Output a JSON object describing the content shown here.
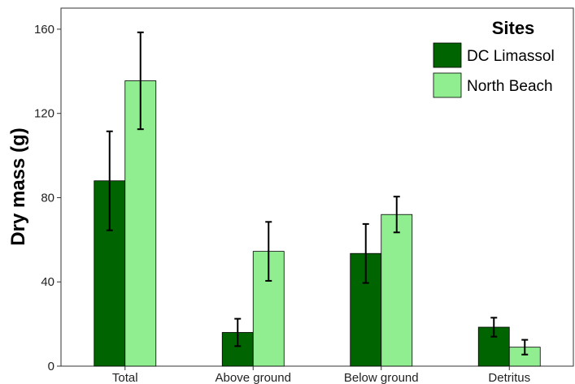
{
  "chart_data": {
    "type": "bar",
    "categories": [
      "Total",
      "Above ground",
      "Below ground",
      "Detritus"
    ],
    "series": [
      {
        "name": "DC Limassol",
        "color": "#006400",
        "values": [
          88,
          16,
          53.5,
          18.5
        ],
        "errors": [
          23.5,
          6.5,
          14,
          4.5
        ]
      },
      {
        "name": "North Beach",
        "color": "#90ee90",
        "values": [
          135.5,
          54.5,
          72,
          9
        ],
        "errors": [
          23,
          14,
          8.5,
          3.5
        ]
      }
    ],
    "ylabel": "Dry mass (g)",
    "xlabel": "",
    "ylim": [
      0,
      170
    ],
    "yticks": [
      0,
      40,
      80,
      120,
      160
    ],
    "legend": {
      "title": "Sites",
      "position": "top-right"
    },
    "grid": false
  }
}
